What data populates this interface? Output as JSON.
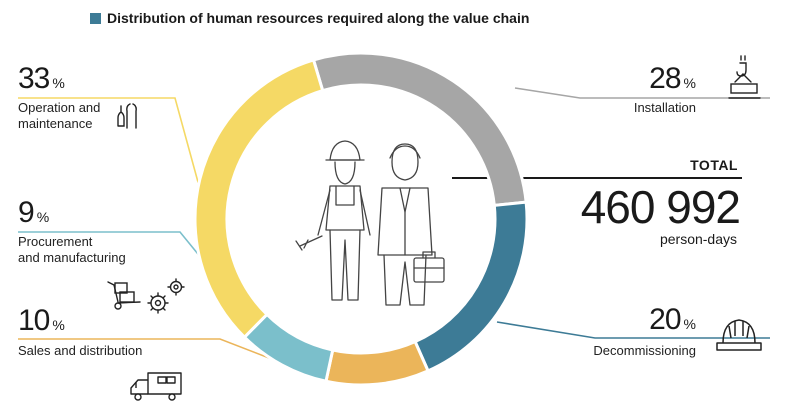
{
  "chart_data": {
    "type": "pie",
    "title": "Distribution of human resources required along the value chain",
    "total": {
      "label": "TOTAL",
      "value": "460 992",
      "unit": "person-days"
    },
    "slices": [
      {
        "label": "Installation",
        "value": 28,
        "color": "#a6a6a6"
      },
      {
        "label": "Decommissioning",
        "value": 20,
        "color": "#3d7b96"
      },
      {
        "label": "Sales and distribution",
        "value": 10,
        "color": "#ebb55a"
      },
      {
        "label": "Procurement and manufacturing",
        "value": 9,
        "color": "#7bbfcb"
      },
      {
        "label": "Operation and maintenance",
        "value": 33,
        "color": "#f5d965"
      }
    ]
  },
  "title_color": "#3d7b96",
  "labels": {
    "installation": {
      "value": "28",
      "sign": "%",
      "text": "Installation"
    },
    "operation": {
      "value": "33",
      "sign": "%",
      "line1": "Operation and",
      "line2": "maintenance"
    },
    "procurement": {
      "value": "9",
      "sign": "%",
      "line1": "Procurement",
      "line2": "and manufacturing"
    },
    "sales": {
      "value": "10",
      "sign": "%",
      "text": "Sales and distribution"
    },
    "decommissioning": {
      "value": "20",
      "sign": "%",
      "text": "Decommissioning"
    }
  },
  "icons": [
    "crane-hook-icon",
    "tools-icon",
    "hand-truck-icon",
    "gears-icon",
    "delivery-truck-icon",
    "hard-hat-icon",
    "worker-female-icon",
    "worker-male-icon"
  ]
}
